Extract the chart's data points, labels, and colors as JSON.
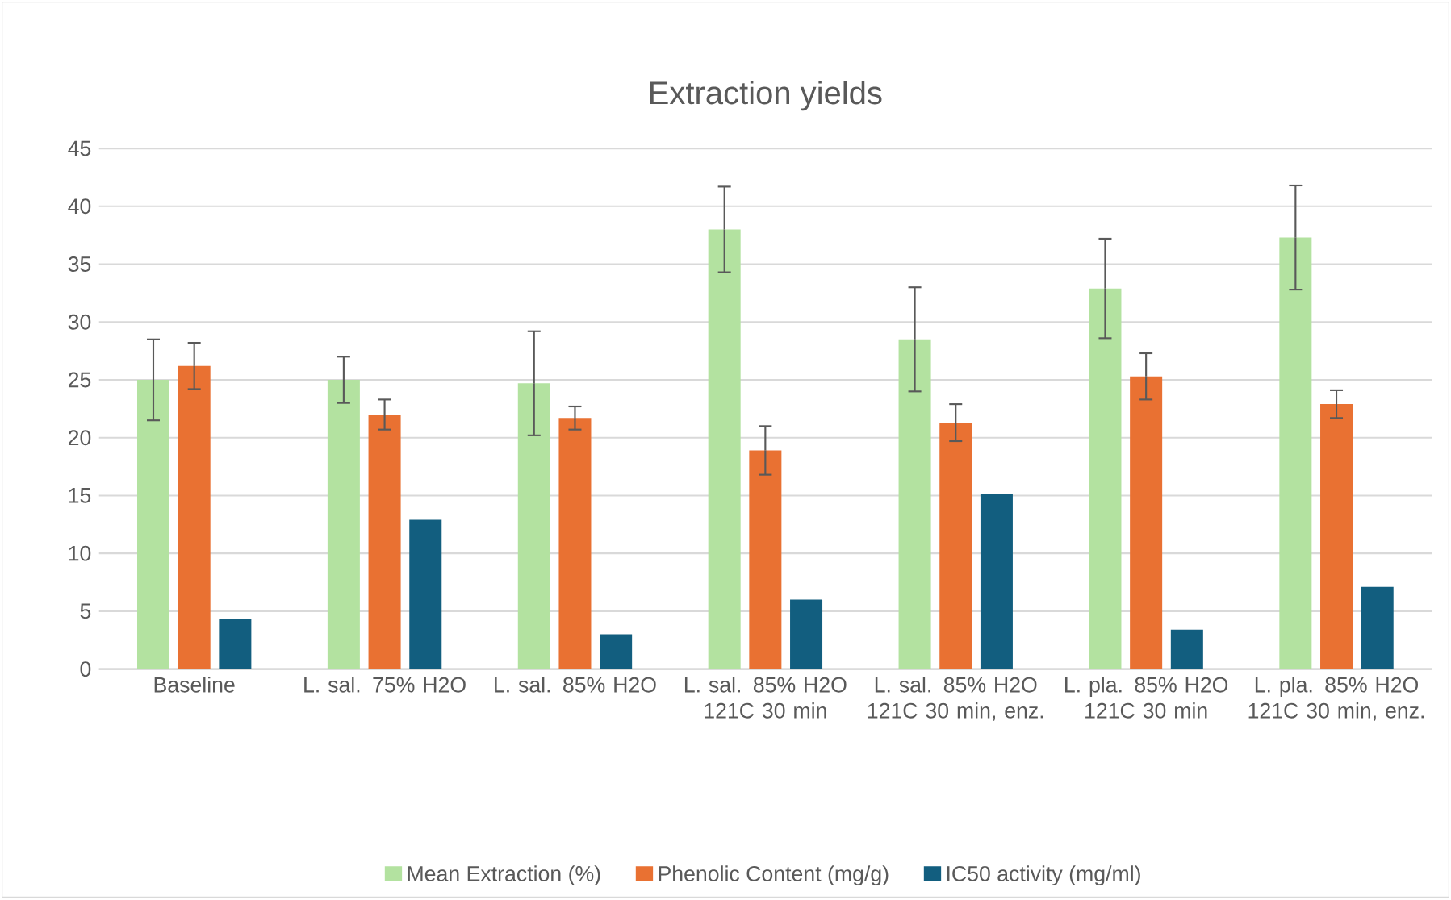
{
  "chart_data": {
    "type": "bar",
    "title": "Extraction yields",
    "categories": [
      "Baseline",
      "L. sal. 75% H2O",
      "L. sal. 85% H2O",
      "L. sal. 85% H2O 121C 30 min",
      "L. sal. 85% H2O 121C 30 min, enz.",
      "L. pla. 85% H2O 121C 30 min",
      "L. pla. 85% H2O 121C 30 min, enz."
    ],
    "series": [
      {
        "name": "Mean Extraction (%)",
        "color": "#b3e2a0",
        "values": [
          25.0,
          25.0,
          24.7,
          38.0,
          28.5,
          32.9,
          37.3
        ],
        "errors": [
          3.5,
          2.0,
          4.5,
          3.7,
          4.5,
          4.3,
          4.5
        ]
      },
      {
        "name": "Phenolic Content (mg/g)",
        "color": "#e97132",
        "values": [
          26.2,
          22.0,
          21.7,
          18.9,
          21.3,
          25.3,
          22.9
        ],
        "errors": [
          2.0,
          1.3,
          1.0,
          2.1,
          1.6,
          2.0,
          1.2
        ]
      },
      {
        "name": "IC50 activity (mg/ml)",
        "color": "#125e7f",
        "values": [
          4.3,
          12.9,
          3.0,
          6.0,
          15.1,
          3.4,
          7.1
        ]
      }
    ],
    "ylim": [
      0,
      45
    ],
    "yticks": [
      0,
      5,
      10,
      15,
      20,
      25,
      30,
      35,
      40,
      45
    ],
    "grid": "y",
    "legend": "bottom"
  }
}
